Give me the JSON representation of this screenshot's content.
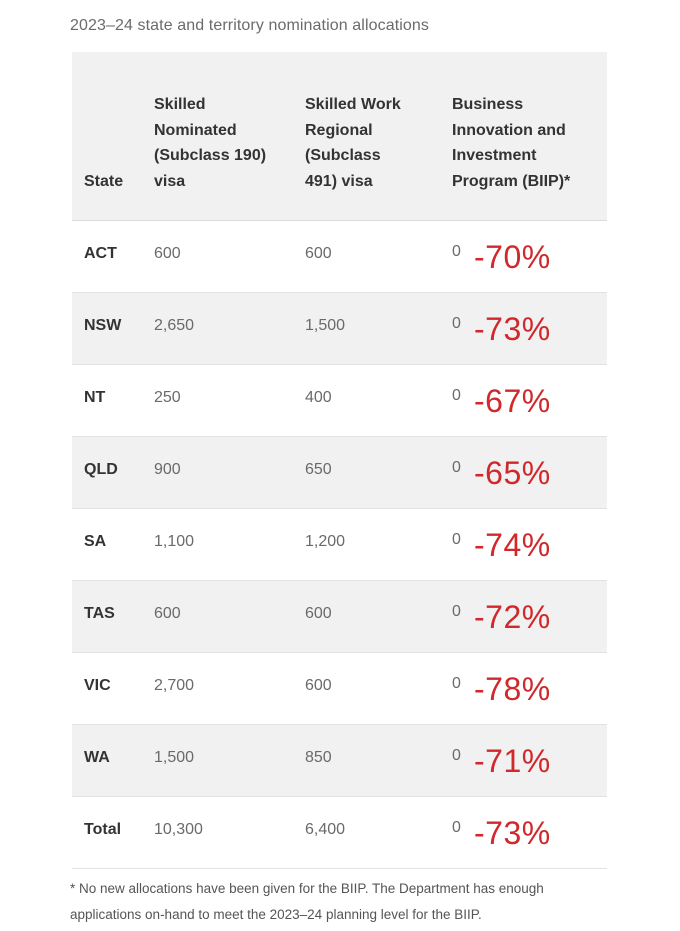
{
  "caption": "2023–24 state and territory nomination allocations",
  "headers": {
    "state": "State",
    "skilled_nominated": [
      "Skilled",
      "Nominated",
      "(Subclass 190)",
      "visa"
    ],
    "skilled_work_regional": [
      "Skilled Work",
      "Regional",
      "(Subclass",
      "491) visa"
    ],
    "biip": [
      "Business",
      "Innovation and",
      "Investment",
      "Program (BIIP)*"
    ]
  },
  "rows": [
    {
      "state": "ACT",
      "v190": "600",
      "v491": "600",
      "biip": "0",
      "pct": "-70%"
    },
    {
      "state": "NSW",
      "v190": "2,650",
      "v491": "1,500",
      "biip": "0",
      "pct": "-73%"
    },
    {
      "state": "NT",
      "v190": "250",
      "v491": "400",
      "biip": "0",
      "pct": "-67%"
    },
    {
      "state": "QLD",
      "v190": "900",
      "v491": "650",
      "biip": "0",
      "pct": "-65%"
    },
    {
      "state": "SA",
      "v190": "1,100",
      "v491": "1,200",
      "biip": "0",
      "pct": "-74%"
    },
    {
      "state": "TAS",
      "v190": "600",
      "v491": "600",
      "biip": "0",
      "pct": "-72%"
    },
    {
      "state": "VIC",
      "v190": "2,700",
      "v491": "600",
      "biip": "0",
      "pct": "-78%"
    },
    {
      "state": "WA",
      "v190": "1,500",
      "v491": "850",
      "biip": "0",
      "pct": "-71%"
    },
    {
      "state": "Total",
      "v190": "10,300",
      "v491": "6,400",
      "biip": "0",
      "pct": "-73%"
    }
  ],
  "footnote": [
    "* No new allocations have been given for the BIIP. The Department has enough",
    "applications on-hand to meet the 2023–24 planning level for the BIIP."
  ],
  "colors": {
    "annotation": "#d0282b",
    "stripe": "#f1f1f1"
  }
}
